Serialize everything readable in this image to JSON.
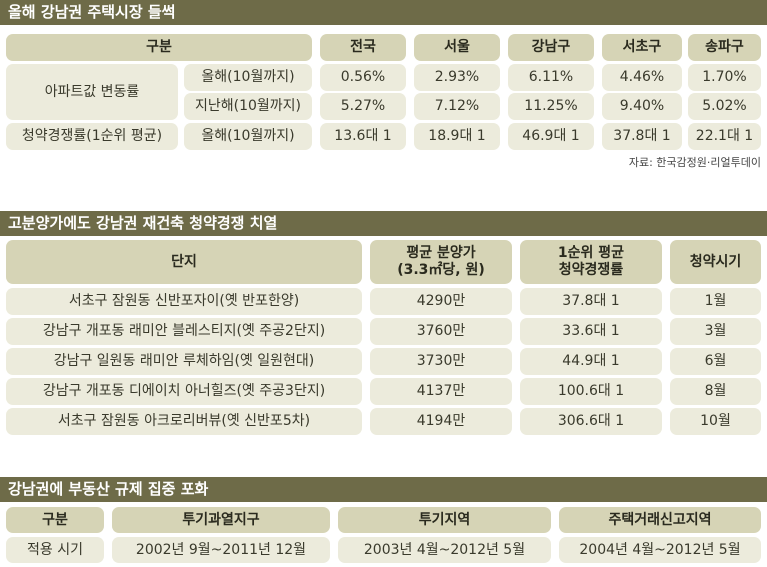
{
  "section1": {
    "title": "올해 강남권 주택시장 들썩",
    "headers": [
      "구분",
      "전국",
      "서울",
      "강남구",
      "서초구",
      "송파구"
    ],
    "group1_label": "아파트값 변동률",
    "rows": [
      {
        "label": "올해(10월까지)",
        "values": [
          "0.56%",
          "2.93%",
          "6.11%",
          "4.46%",
          "1.70%"
        ]
      },
      {
        "label": "지난해(10월까지)",
        "values": [
          "5.27%",
          "7.12%",
          "11.25%",
          "9.40%",
          "5.02%"
        ]
      }
    ],
    "group2_label": "청약경쟁률(1순위 평균)",
    "row3": {
      "label": "올해(10월까지)",
      "values": [
        "13.6대 1",
        "18.9대 1",
        "46.9대 1",
        "37.8대 1",
        "22.1대 1"
      ]
    },
    "source": "자료: 한국감정원·리얼투데이"
  },
  "section2": {
    "title": "고분양가에도 강남권 재건축 청약경쟁 치열",
    "headers": {
      "complex": "단지",
      "price_line1": "평균 분양가",
      "price_line2": "(3.3㎡당, 원)",
      "comp_line1": "1순위 평균",
      "comp_line2": "청약경쟁률",
      "timing": "청약시기"
    },
    "rows": [
      {
        "complex": "서초구 잠원동 신반포자이(옛 반포한양)",
        "price": "4290만",
        "comp": "37.8대 1",
        "timing": "1월"
      },
      {
        "complex": "강남구 개포동 래미안 블레스티지(옛 주공2단지)",
        "price": "3760만",
        "comp": "33.6대 1",
        "timing": "3월"
      },
      {
        "complex": "강남구 일원동 래미안 루체하임(옛 일원현대)",
        "price": "3730만",
        "comp": "44.9대 1",
        "timing": "6월"
      },
      {
        "complex": "강남구 개포동 디에이치 아너힐즈(옛 주공3단지)",
        "price": "4137만",
        "comp": "100.6대 1",
        "timing": "8월"
      },
      {
        "complex": "서초구 잠원동 아크로리버뷰(옛 신반포5차)",
        "price": "4194만",
        "comp": "306.6대 1",
        "timing": "10월"
      }
    ]
  },
  "section3": {
    "title": "강남권에 부동산 규제 집중 포화",
    "headers": [
      "구분",
      "투기과열지구",
      "투기지역",
      "주택거래신고지역"
    ],
    "row": {
      "label": "적용 시기",
      "values": [
        "2002년 9월~2011년 12월",
        "2003년 4월~2012년 5월",
        "2004년 4월~2012년 5월"
      ]
    }
  }
}
